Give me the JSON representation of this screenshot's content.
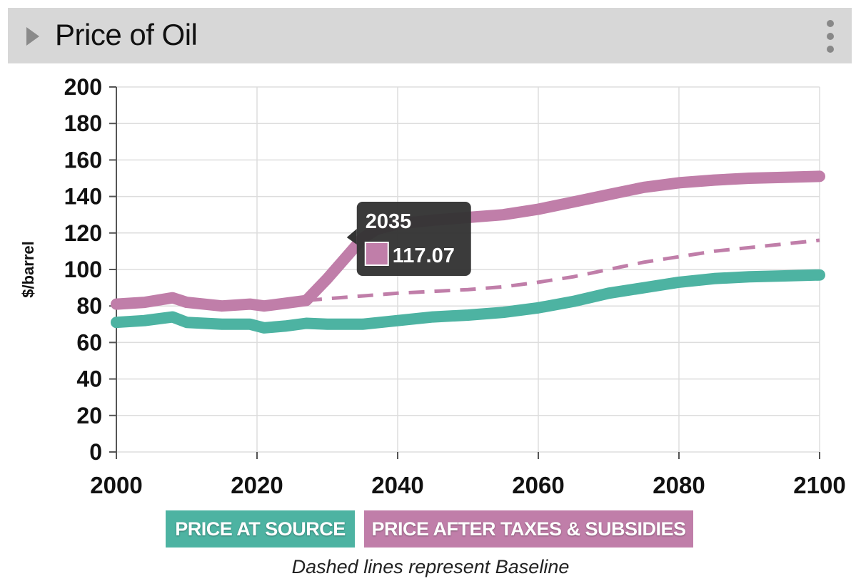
{
  "panel": {
    "title": "Price of Oil",
    "toggle_icon": "chevron-right-icon",
    "menu_icon": "more-vertical-icon"
  },
  "colors": {
    "source": "#4db3a2",
    "after_tax": "#c07ea9",
    "tooltip_bg": "#333333",
    "grid": "#dddddd"
  },
  "chart_data": {
    "type": "line",
    "title": "Price of Oil",
    "xlabel": "",
    "ylabel": "$/barrel",
    "xlim": [
      2000,
      2100
    ],
    "ylim": [
      0,
      200
    ],
    "x_ticks": [
      2000,
      2020,
      2040,
      2060,
      2080,
      2100
    ],
    "y_ticks": [
      0,
      20,
      40,
      60,
      80,
      100,
      120,
      140,
      160,
      180,
      200
    ],
    "grid": true,
    "series": [
      {
        "name": "PRICE AT SOURCE",
        "style": "solid",
        "color_key": "source",
        "points": [
          [
            2000,
            71
          ],
          [
            2004,
            72
          ],
          [
            2008,
            74
          ],
          [
            2010,
            71
          ],
          [
            2015,
            70
          ],
          [
            2019,
            70
          ],
          [
            2021,
            68
          ],
          [
            2024,
            69
          ],
          [
            2027,
            70.5
          ],
          [
            2030,
            70
          ],
          [
            2035,
            70
          ],
          [
            2040,
            72
          ],
          [
            2045,
            74
          ],
          [
            2050,
            75
          ],
          [
            2055,
            76.5
          ],
          [
            2060,
            79
          ],
          [
            2065,
            82.5
          ],
          [
            2070,
            87
          ],
          [
            2075,
            90
          ],
          [
            2080,
            93
          ],
          [
            2085,
            95
          ],
          [
            2090,
            96
          ],
          [
            2095,
            96.5
          ],
          [
            2100,
            97
          ]
        ]
      },
      {
        "name": "PRICE AFTER TAXES & SUBSIDIES",
        "style": "solid",
        "color_key": "after_tax",
        "points": [
          [
            2000,
            81
          ],
          [
            2004,
            82
          ],
          [
            2008,
            84.5
          ],
          [
            2010,
            82
          ],
          [
            2015,
            80
          ],
          [
            2019,
            81
          ],
          [
            2021,
            80
          ],
          [
            2024,
            81.5
          ],
          [
            2027,
            83
          ],
          [
            2030,
            95
          ],
          [
            2035,
            117.07
          ],
          [
            2037,
            122
          ],
          [
            2040,
            125
          ],
          [
            2045,
            127
          ],
          [
            2050,
            128.5
          ],
          [
            2055,
            130
          ],
          [
            2060,
            133
          ],
          [
            2065,
            137
          ],
          [
            2070,
            141
          ],
          [
            2075,
            145
          ],
          [
            2080,
            147.5
          ],
          [
            2085,
            149
          ],
          [
            2090,
            150
          ],
          [
            2095,
            150.5
          ],
          [
            2100,
            151
          ]
        ]
      },
      {
        "name": "PRICE AT SOURCE (Baseline)",
        "style": "dashed",
        "color_key": "source",
        "points": [
          [
            2027,
            70.5
          ],
          [
            2030,
            70
          ],
          [
            2035,
            70.5
          ],
          [
            2040,
            72
          ],
          [
            2045,
            74
          ],
          [
            2050,
            75
          ],
          [
            2055,
            76.5
          ],
          [
            2060,
            79
          ],
          [
            2065,
            82.5
          ],
          [
            2070,
            87
          ],
          [
            2075,
            90
          ],
          [
            2080,
            93
          ],
          [
            2085,
            95
          ],
          [
            2090,
            96.5
          ],
          [
            2095,
            97.5
          ],
          [
            2100,
            98.5
          ]
        ]
      },
      {
        "name": "PRICE AFTER TAXES & SUBSIDIES (Baseline)",
        "style": "dashed",
        "color_key": "after_tax",
        "points": [
          [
            2027,
            83
          ],
          [
            2030,
            84
          ],
          [
            2035,
            85.5
          ],
          [
            2040,
            87
          ],
          [
            2045,
            88
          ],
          [
            2050,
            89
          ],
          [
            2055,
            90.5
          ],
          [
            2060,
            93
          ],
          [
            2065,
            96
          ],
          [
            2070,
            100
          ],
          [
            2075,
            104
          ],
          [
            2080,
            107
          ],
          [
            2085,
            110
          ],
          [
            2090,
            112
          ],
          [
            2095,
            114
          ],
          [
            2100,
            116
          ]
        ]
      }
    ],
    "tooltip": {
      "year": "2035",
      "value": "117.07",
      "x": 2035,
      "y": 117.07,
      "color_key": "after_tax"
    }
  },
  "legend": {
    "items": [
      {
        "label": "PRICE AT SOURCE",
        "color_key": "source"
      },
      {
        "label": "PRICE AFTER TAXES & SUBSIDIES",
        "color_key": "after_tax"
      }
    ]
  },
  "caption": "Dashed lines represent Baseline"
}
